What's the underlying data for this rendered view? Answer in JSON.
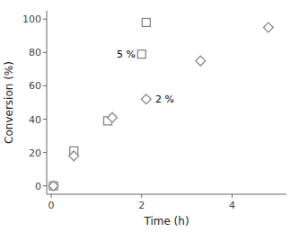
{
  "chart_data": {
    "type": "scatter",
    "x_label": "Time (h)",
    "y_label": "Conversion (%)",
    "series": [
      {
        "marker": "square",
        "color": "#888888",
        "x": [
          0.05,
          0.5,
          1.25,
          2.0,
          2.1
        ],
        "values": [
          0,
          21,
          39,
          79,
          98
        ]
      },
      {
        "marker": "diamond",
        "color": "#888888",
        "x": [
          0.05,
          0.5,
          1.35,
          2.1,
          3.3,
          4.8
        ],
        "values": [
          0,
          18,
          41,
          52,
          75,
          95
        ]
      }
    ],
    "annotations": [
      {
        "text": "5 %",
        "x": 1.45,
        "y": 79
      },
      {
        "text": "2 %",
        "x": 2.3,
        "y": 52
      }
    ],
    "xlim": [
      -0.1,
      5.2
    ],
    "ylim": [
      -5,
      105
    ],
    "xticks": [
      0,
      2,
      4
    ],
    "yticks": [
      0,
      20,
      40,
      60,
      80,
      100
    ]
  }
}
